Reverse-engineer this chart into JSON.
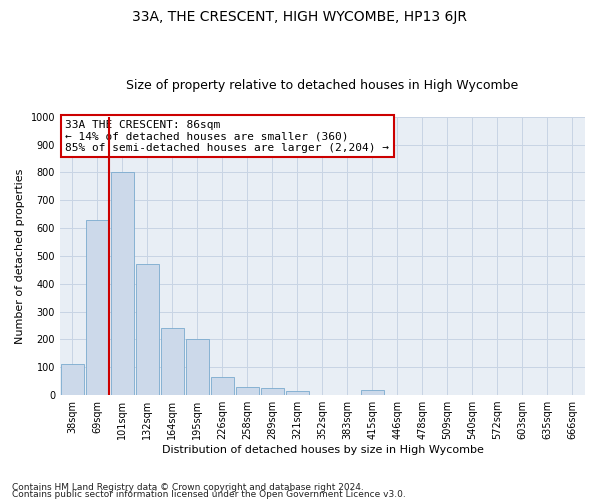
{
  "title": "33A, THE CRESCENT, HIGH WYCOMBE, HP13 6JR",
  "subtitle": "Size of property relative to detached houses in High Wycombe",
  "xlabel": "Distribution of detached houses by size in High Wycombe",
  "ylabel": "Number of detached properties",
  "categories": [
    "38sqm",
    "69sqm",
    "101sqm",
    "132sqm",
    "164sqm",
    "195sqm",
    "226sqm",
    "258sqm",
    "289sqm",
    "321sqm",
    "352sqm",
    "383sqm",
    "415sqm",
    "446sqm",
    "478sqm",
    "509sqm",
    "540sqm",
    "572sqm",
    "603sqm",
    "635sqm",
    "666sqm"
  ],
  "values": [
    110,
    630,
    800,
    470,
    240,
    200,
    65,
    30,
    25,
    15,
    0,
    0,
    20,
    0,
    0,
    0,
    0,
    0,
    0,
    0,
    0
  ],
  "bar_color": "#ccd9ea",
  "bar_edge_color": "#7aaace",
  "vline_color": "#cc0000",
  "annotation_text": "33A THE CRESCENT: 86sqm\n← 14% of detached houses are smaller (360)\n85% of semi-detached houses are larger (2,204) →",
  "annotation_box_color": "#ffffff",
  "annotation_box_edge": "#cc0000",
  "ylim": [
    0,
    1000
  ],
  "yticks": [
    0,
    100,
    200,
    300,
    400,
    500,
    600,
    700,
    800,
    900,
    1000
  ],
  "footer1": "Contains HM Land Registry data © Crown copyright and database right 2024.",
  "footer2": "Contains public sector information licensed under the Open Government Licence v3.0.",
  "bg_color": "#ffffff",
  "plot_bg_color": "#e8eef5",
  "grid_color": "#c8d4e4",
  "title_fontsize": 10,
  "subtitle_fontsize": 9,
  "axis_label_fontsize": 8,
  "tick_fontsize": 7,
  "annot_fontsize": 8,
  "footer_fontsize": 6.5
}
